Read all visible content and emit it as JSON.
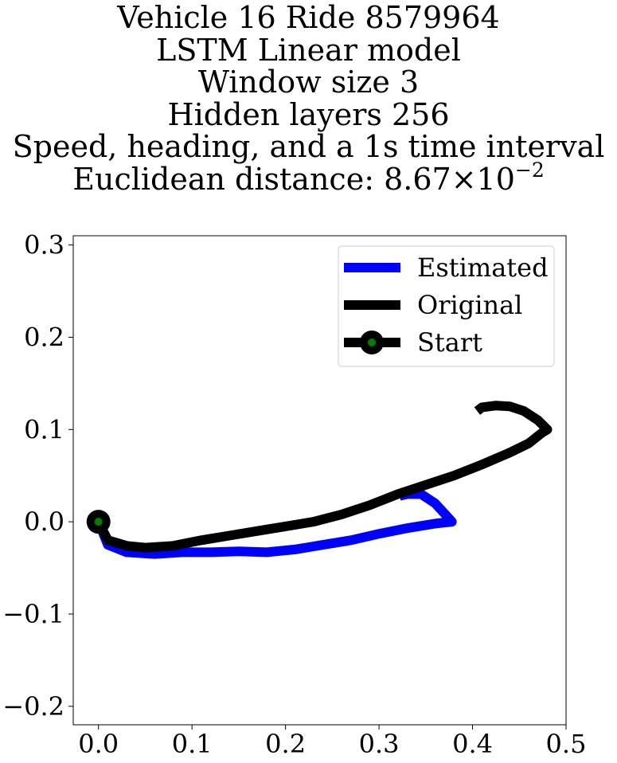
{
  "chart_data": {
    "type": "line",
    "title_lines": [
      "Vehicle 16 Ride 8579964",
      "LSTM Linear model",
      "Window size 3",
      "Hidden layers 256",
      "Speed, heading, and a 1s time interval"
    ],
    "distance": {
      "prefix": "Euclidean distance: ",
      "mantissa": "8.67",
      "times": "×",
      "base": "10",
      "exponent": "−2"
    },
    "xlim": [
      -0.027,
      0.5
    ],
    "ylim": [
      -0.22,
      0.31
    ],
    "grid": false,
    "legend_position": "top-right",
    "x_ticks": [
      {
        "value": 0.0,
        "label": "0.0"
      },
      {
        "value": 0.1,
        "label": "0.1"
      },
      {
        "value": 0.2,
        "label": "0.2"
      },
      {
        "value": 0.3,
        "label": "0.3"
      },
      {
        "value": 0.4,
        "label": "0.4"
      },
      {
        "value": 0.5,
        "label": "0.5"
      }
    ],
    "y_ticks": [
      {
        "value": -0.2,
        "label": "−0.2"
      },
      {
        "value": -0.1,
        "label": "−0.1"
      },
      {
        "value": 0.0,
        "label": "0.0"
      },
      {
        "value": 0.1,
        "label": "0.1"
      },
      {
        "value": 0.2,
        "label": "0.2"
      },
      {
        "value": 0.3,
        "label": "0.3"
      }
    ],
    "series": [
      {
        "name": "Estimated",
        "color": "#0000ff",
        "x": [
          0.0,
          0.01,
          0.03,
          0.06,
          0.09,
          0.12,
          0.15,
          0.18,
          0.21,
          0.24,
          0.27,
          0.3,
          0.33,
          0.36,
          0.378,
          0.36,
          0.345,
          0.33,
          0.322
        ],
        "y": [
          0.0,
          -0.025,
          -0.033,
          -0.035,
          -0.033,
          -0.033,
          -0.032,
          -0.033,
          -0.03,
          -0.025,
          -0.02,
          -0.013,
          -0.007,
          -0.002,
          0.0,
          0.02,
          0.03,
          0.03,
          0.028
        ]
      },
      {
        "name": "Original",
        "color": "#000000",
        "x": [
          0.0,
          0.01,
          0.03,
          0.05,
          0.08,
          0.11,
          0.14,
          0.17,
          0.2,
          0.23,
          0.26,
          0.29,
          0.32,
          0.35,
          0.38,
          0.41,
          0.44,
          0.46,
          0.475,
          0.48,
          0.47,
          0.455,
          0.44,
          0.425,
          0.41,
          0.405
        ],
        "y": [
          0.0,
          -0.02,
          -0.026,
          -0.028,
          -0.026,
          -0.02,
          -0.015,
          -0.01,
          -0.005,
          0.0,
          0.008,
          0.018,
          0.03,
          0.04,
          0.05,
          0.062,
          0.075,
          0.085,
          0.097,
          0.1,
          0.11,
          0.12,
          0.125,
          0.126,
          0.124,
          0.12
        ]
      }
    ],
    "start_marker": {
      "name": "Start",
      "x": 0.0,
      "y": 0.0,
      "outer_color": "#000000",
      "inner_color": "#008000"
    }
  }
}
